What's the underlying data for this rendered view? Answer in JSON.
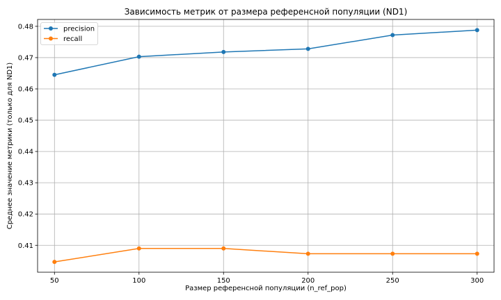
{
  "chart_data": {
    "type": "line",
    "title": "Зависимость метрик от размера референсной популяции (ND1)",
    "xlabel": "Размер референсной популяции (n_ref_pop)",
    "ylabel": "Среднее значение метрики (только для ND1)",
    "x": [
      50,
      100,
      150,
      200,
      250,
      300
    ],
    "xticks": [
      "50",
      "100",
      "150",
      "200",
      "250",
      "300"
    ],
    "yticks": [
      "0.41",
      "0.42",
      "0.43",
      "0.44",
      "0.45",
      "0.46",
      "0.47",
      "0.48"
    ],
    "xlim": [
      40,
      310
    ],
    "ylim": [
      0.4014,
      0.4822
    ],
    "grid": true,
    "legend_position": "upper-left",
    "series": [
      {
        "name": "precision",
        "color": "#1f77b4",
        "values": [
          0.4645,
          0.4703,
          0.4718,
          0.4728,
          0.4772,
          0.4788
        ]
      },
      {
        "name": "recall",
        "color": "#ff7f0e",
        "values": [
          0.4047,
          0.409,
          0.409,
          0.4073,
          0.4073,
          0.4073
        ]
      }
    ]
  }
}
